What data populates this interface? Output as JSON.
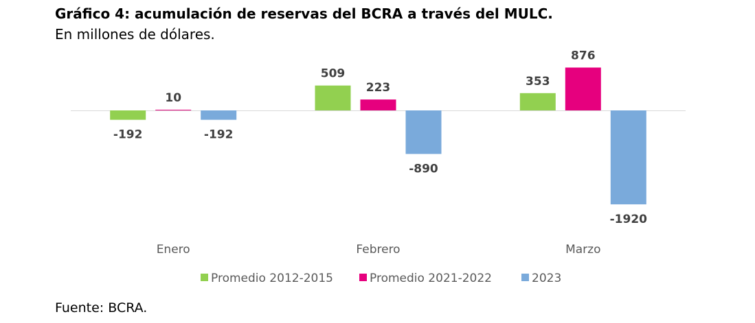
{
  "title": "Gráfico 4: acumulación de reservas del BCRA a través del MULC.",
  "subtitle": "En millones de dólares.",
  "source": "Fuente: BCRA.",
  "chart_data": {
    "type": "bar",
    "categories": [
      "Enero",
      "Febrero",
      "Marzo"
    ],
    "series": [
      {
        "name": "Promedio 2012-2015",
        "color": "#92d050",
        "values": [
          -192,
          509,
          353
        ]
      },
      {
        "name": "Promedio 2021-2022",
        "color": "#e6007e",
        "values": [
          10,
          223,
          876
        ]
      },
      {
        "name": "2023",
        "color": "#7aaadb",
        "values": [
          -192,
          -890,
          -1920
        ]
      }
    ],
    "data_labels": true,
    "legend_position": "bottom",
    "grid": false
  }
}
